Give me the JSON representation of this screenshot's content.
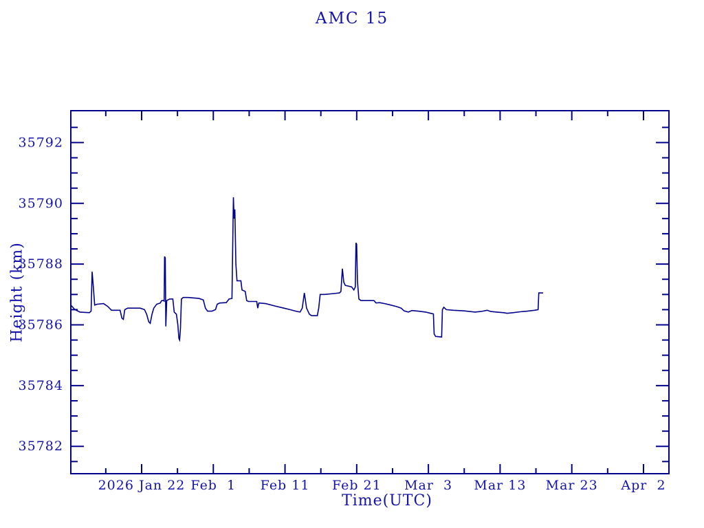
{
  "page": {
    "background": "#ffffff"
  },
  "chart_data": {
    "type": "line",
    "title": "AMC 15",
    "xlabel": "Time(UTC)",
    "ylabel": "Height (km)",
    "line_color": "#00008b",
    "text_color": "#1414a8",
    "grid": false,
    "legend": "none",
    "x_unit": "days relative to 2026 Jan 22 (UTC)",
    "xlim": [
      -9.877,
      73.55
    ],
    "ylim": [
      35781.1,
      35793.05
    ],
    "x_ticks": [
      {
        "day": 0,
        "label": "2026 Jan 22"
      },
      {
        "day": 10,
        "label": "Feb  1"
      },
      {
        "day": 20,
        "label": "Feb 11"
      },
      {
        "day": 30,
        "label": "Feb 21"
      },
      {
        "day": 40,
        "label": "Mar  3"
      },
      {
        "day": 50,
        "label": "Mar 13"
      },
      {
        "day": 60,
        "label": "Mar 23"
      },
      {
        "day": 70,
        "label": "Apr  2"
      }
    ],
    "x_minor_tick_days": [
      -5,
      5,
      15,
      25,
      35,
      45,
      55,
      65
    ],
    "y_ticks": [
      {
        "value": 35782,
        "label": "35782"
      },
      {
        "value": 35784,
        "label": "35784"
      },
      {
        "value": 35786,
        "label": "35786"
      },
      {
        "value": 35788,
        "label": "35788"
      },
      {
        "value": 35790,
        "label": "35790"
      },
      {
        "value": 35792,
        "label": "35792"
      }
    ],
    "y_minor_step": 0.5,
    "series": [
      {
        "name": "height",
        "points": [
          [
            -9.88,
            35786.65
          ],
          [
            -9.3,
            35786.5
          ],
          [
            -8.6,
            35786.42
          ],
          [
            -7.3,
            35786.4
          ],
          [
            -7.05,
            35786.45
          ],
          [
            -6.9,
            35787.75
          ],
          [
            -6.75,
            35787.3
          ],
          [
            -6.55,
            35786.65
          ],
          [
            -6.2,
            35786.68
          ],
          [
            -5.3,
            35786.7
          ],
          [
            -4.7,
            35786.6
          ],
          [
            -4.2,
            35786.48
          ],
          [
            -3.0,
            35786.48
          ],
          [
            -2.75,
            35786.22
          ],
          [
            -2.55,
            35786.18
          ],
          [
            -2.35,
            35786.5
          ],
          [
            -1.95,
            35786.55
          ],
          [
            -0.2,
            35786.55
          ],
          [
            0.4,
            35786.5
          ],
          [
            0.7,
            35786.35
          ],
          [
            1.0,
            35786.1
          ],
          [
            1.2,
            35786.05
          ],
          [
            1.45,
            35786.35
          ],
          [
            1.7,
            35786.55
          ],
          [
            2.1,
            35786.68
          ],
          [
            2.6,
            35786.72
          ],
          [
            2.8,
            35786.8
          ],
          [
            3.05,
            35786.8
          ],
          [
            3.15,
            35786.78
          ],
          [
            3.2,
            35788.25
          ],
          [
            3.3,
            35788.2
          ],
          [
            3.38,
            35785.95
          ],
          [
            3.5,
            35786.8
          ],
          [
            3.9,
            35786.85
          ],
          [
            4.35,
            35786.85
          ],
          [
            4.55,
            35786.42
          ],
          [
            4.85,
            35786.35
          ],
          [
            5.05,
            35786.0
          ],
          [
            5.2,
            35785.55
          ],
          [
            5.3,
            35785.5
          ],
          [
            5.42,
            35785.9
          ],
          [
            5.55,
            35786.85
          ],
          [
            5.8,
            35786.9
          ],
          [
            6.5,
            35786.9
          ],
          [
            8.0,
            35786.87
          ],
          [
            8.6,
            35786.82
          ],
          [
            8.9,
            35786.55
          ],
          [
            9.2,
            35786.45
          ],
          [
            9.8,
            35786.45
          ],
          [
            10.3,
            35786.5
          ],
          [
            10.55,
            35786.68
          ],
          [
            10.9,
            35786.72
          ],
          [
            11.8,
            35786.73
          ],
          [
            12.2,
            35786.85
          ],
          [
            12.6,
            35786.87
          ],
          [
            12.8,
            35790.2
          ],
          [
            12.9,
            35789.5
          ],
          [
            13.0,
            35789.8
          ],
          [
            13.15,
            35788.0
          ],
          [
            13.3,
            35787.45
          ],
          [
            13.85,
            35787.45
          ],
          [
            14.0,
            35787.15
          ],
          [
            14.45,
            35787.1
          ],
          [
            14.65,
            35786.8
          ],
          [
            14.9,
            35786.77
          ],
          [
            16.05,
            35786.77
          ],
          [
            16.2,
            35786.55
          ],
          [
            16.35,
            35786.72
          ],
          [
            17.3,
            35786.7
          ],
          [
            18.6,
            35786.62
          ],
          [
            19.7,
            35786.56
          ],
          [
            20.7,
            35786.5
          ],
          [
            21.5,
            35786.45
          ],
          [
            22.1,
            35786.42
          ],
          [
            22.4,
            35786.55
          ],
          [
            22.7,
            35787.05
          ],
          [
            23.0,
            35786.55
          ],
          [
            23.4,
            35786.35
          ],
          [
            23.7,
            35786.3
          ],
          [
            24.5,
            35786.3
          ],
          [
            24.7,
            35786.55
          ],
          [
            24.9,
            35787.0
          ],
          [
            25.5,
            35787.0
          ],
          [
            26.8,
            35787.03
          ],
          [
            27.6,
            35787.05
          ],
          [
            27.8,
            35787.1
          ],
          [
            28.0,
            35787.85
          ],
          [
            28.2,
            35787.4
          ],
          [
            28.4,
            35787.3
          ],
          [
            29.3,
            35787.25
          ],
          [
            29.6,
            35787.15
          ],
          [
            29.8,
            35787.25
          ],
          [
            29.9,
            35788.7
          ],
          [
            30.0,
            35788.65
          ],
          [
            30.1,
            35787.45
          ],
          [
            30.3,
            35786.85
          ],
          [
            30.6,
            35786.8
          ],
          [
            32.4,
            35786.8
          ],
          [
            32.7,
            35786.72
          ],
          [
            33.2,
            35786.73
          ],
          [
            33.9,
            35786.7
          ],
          [
            34.6,
            35786.66
          ],
          [
            35.6,
            35786.6
          ],
          [
            36.2,
            35786.55
          ],
          [
            36.6,
            35786.46
          ],
          [
            37.2,
            35786.42
          ],
          [
            37.7,
            35786.47
          ],
          [
            38.6,
            35786.45
          ],
          [
            39.6,
            35786.42
          ],
          [
            40.3,
            35786.38
          ],
          [
            40.7,
            35786.36
          ],
          [
            40.8,
            35785.7
          ],
          [
            41.0,
            35785.62
          ],
          [
            41.85,
            35785.6
          ],
          [
            41.95,
            35786.5
          ],
          [
            42.15,
            35786.58
          ],
          [
            42.5,
            35786.5
          ],
          [
            43.5,
            35786.48
          ],
          [
            45.0,
            35786.46
          ],
          [
            46.5,
            35786.42
          ],
          [
            47.3,
            35786.44
          ],
          [
            48.2,
            35786.48
          ],
          [
            48.7,
            35786.44
          ],
          [
            49.5,
            35786.42
          ],
          [
            50.5,
            35786.4
          ],
          [
            51.0,
            35786.38
          ],
          [
            51.8,
            35786.4
          ],
          [
            52.8,
            35786.43
          ],
          [
            53.8,
            35786.45
          ],
          [
            54.8,
            35786.48
          ],
          [
            55.3,
            35786.5
          ],
          [
            55.4,
            35787.05
          ],
          [
            56.0,
            35787.05
          ]
        ]
      }
    ]
  },
  "layout_note": ""
}
